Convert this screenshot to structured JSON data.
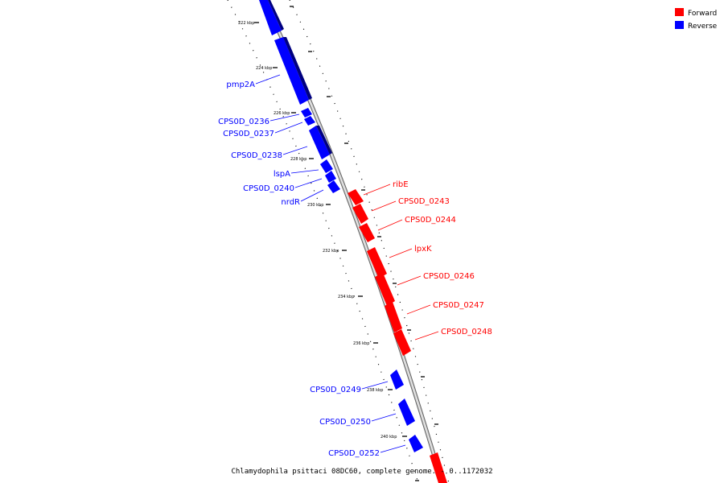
{
  "legend": {
    "items": [
      {
        "label": "Forward",
        "color": "#ff0000"
      },
      {
        "label": "Reverse",
        "color": "#0000ff"
      }
    ]
  },
  "caption": "Chlamydophila psittaci 08DC60, complete genome. - 0..1172032",
  "colors": {
    "forward": "#ff0000",
    "reverse": "#0000ff",
    "backbone": "#b0b0b0"
  },
  "ticks": [
    "222 kbp",
    "224 kbp",
    "226 kbp",
    "228 kbp",
    "230 kbp",
    "232 kbp",
    "234 kbp",
    "236 kbp",
    "238 kbp",
    "240 kbp"
  ],
  "genes": {
    "reverse": [
      {
        "label": "pmp2A"
      },
      {
        "label": "CPS0D_0236"
      },
      {
        "label": "CPS0D_0237"
      },
      {
        "label": "CPS0D_0238"
      },
      {
        "label": "lspA"
      },
      {
        "label": "CPS0D_0240"
      },
      {
        "label": "nrdR"
      },
      {
        "label": "CPS0D_0249"
      },
      {
        "label": "CPS0D_0250"
      },
      {
        "label": "CPS0D_0252"
      }
    ],
    "forward": [
      {
        "label": "ribE"
      },
      {
        "label": "CPS0D_0243"
      },
      {
        "label": "CPS0D_0244"
      },
      {
        "label": "lpxK"
      },
      {
        "label": "CPS0D_0246"
      },
      {
        "label": "CPS0D_0247"
      },
      {
        "label": "CPS0D_0248"
      }
    ]
  }
}
